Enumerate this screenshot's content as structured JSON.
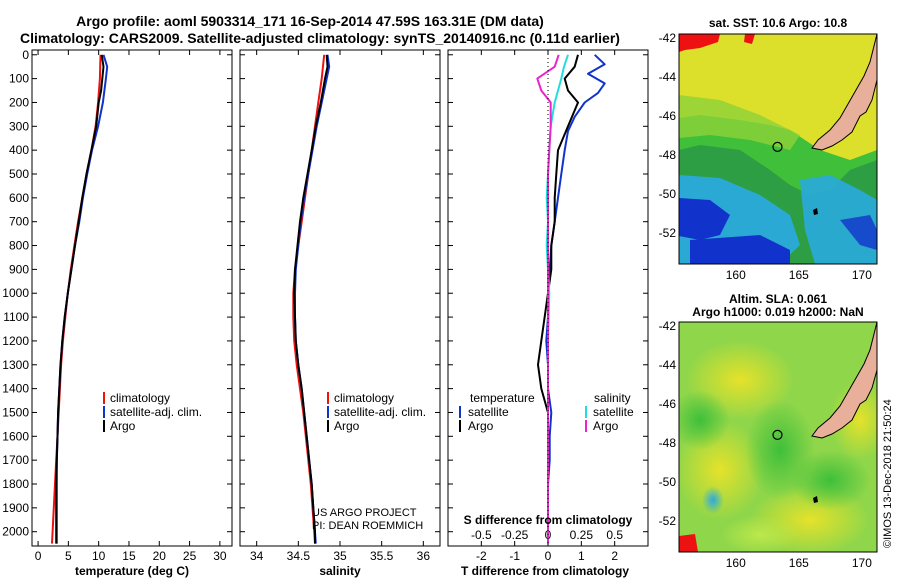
{
  "title": {
    "line1": "Argo profile: aoml 5903314_171 16-Sep-2014 47.59S 163.31E (DM data)",
    "line2": "Climatology: CARS2009. Satellite-adjusted climatology: synTS_20140916.nc (0.11d earlier)"
  },
  "colors": {
    "climatology": "#ee1111",
    "satellite": "#1133cc",
    "argo": "#000000",
    "s_satellite": "#22dddd",
    "s_argo": "#ee22cc",
    "land": "#e8b09a"
  },
  "credits": {
    "project": "US ARGO PROJECT",
    "pi": "PI: DEAN ROEMMICH",
    "imos": "©IMOS 13-Dec-2018 21:50:24"
  },
  "chart_data": [
    {
      "type": "line",
      "id": "temperature-profile",
      "xlabel": "temperature (deg C)",
      "xlim": [
        -1,
        32
      ],
      "ylim": [
        2060,
        -20
      ],
      "xticks": [
        0,
        5,
        10,
        15,
        20,
        25,
        30
      ],
      "yticks": [
        0,
        100,
        200,
        300,
        400,
        500,
        600,
        700,
        800,
        900,
        1000,
        1100,
        1200,
        1300,
        1400,
        1500,
        1600,
        1700,
        1800,
        1900,
        2000
      ],
      "legend": [
        "climatology",
        "satellite-adj. clim.",
        "Argo"
      ],
      "series": [
        {
          "name": "climatology",
          "color_key": "climatology",
          "points": [
            [
              10.3,
              0
            ],
            [
              10.2,
              100
            ],
            [
              9.9,
              200
            ],
            [
              9.5,
              300
            ],
            [
              8.8,
              400
            ],
            [
              8.0,
              500
            ],
            [
              7.3,
              600
            ],
            [
              6.6,
              700
            ],
            [
              6.0,
              800
            ],
            [
              5.4,
              900
            ],
            [
              4.9,
              1000
            ],
            [
              4.5,
              1100
            ],
            [
              4.1,
              1200
            ],
            [
              3.8,
              1300
            ],
            [
              3.6,
              1400
            ],
            [
              3.4,
              1500
            ],
            [
              3.2,
              1600
            ],
            [
              3.0,
              1700
            ],
            [
              2.8,
              1800
            ],
            [
              2.6,
              1900
            ],
            [
              2.4,
              2000
            ],
            [
              2.3,
              2050
            ]
          ]
        },
        {
          "name": "satellite-adj. clim.",
          "color_key": "satellite",
          "points": [
            [
              10.8,
              0
            ],
            [
              11.4,
              50
            ],
            [
              11.2,
              100
            ],
            [
              10.7,
              200
            ],
            [
              9.9,
              300
            ],
            [
              8.9,
              400
            ],
            [
              8.1,
              500
            ],
            [
              7.4,
              600
            ],
            [
              6.8,
              700
            ],
            [
              6.1,
              800
            ],
            [
              5.5,
              900
            ],
            [
              4.9,
              1000
            ],
            [
              4.4,
              1100
            ],
            [
              4.0,
              1200
            ],
            [
              3.7,
              1300
            ],
            [
              3.5,
              1400
            ],
            [
              3.3,
              1500
            ],
            [
              3.2,
              1600
            ],
            [
              3.1,
              1700
            ],
            [
              3.1,
              1800
            ],
            [
              3.1,
              1900
            ],
            [
              3.1,
              2000
            ],
            [
              3.1,
              2050
            ]
          ]
        },
        {
          "name": "Argo",
          "color_key": "argo",
          "points": [
            [
              10.5,
              0
            ],
            [
              10.8,
              50
            ],
            [
              10.6,
              100
            ],
            [
              10.4,
              150
            ],
            [
              10.0,
              200
            ],
            [
              9.6,
              300
            ],
            [
              8.8,
              400
            ],
            [
              8.0,
              500
            ],
            [
              7.3,
              600
            ],
            [
              6.7,
              700
            ],
            [
              6.1,
              800
            ],
            [
              5.5,
              900
            ],
            [
              4.9,
              1000
            ],
            [
              4.4,
              1100
            ],
            [
              4.0,
              1200
            ],
            [
              3.7,
              1300
            ],
            [
              3.5,
              1400
            ],
            [
              3.3,
              1500
            ],
            [
              3.2,
              1600
            ],
            [
              3.1,
              1700
            ],
            [
              3.0,
              1800
            ],
            [
              3.0,
              1900
            ],
            [
              3.0,
              2000
            ],
            [
              3.0,
              2050
            ]
          ]
        }
      ]
    },
    {
      "type": "line",
      "id": "salinity-profile",
      "xlabel": "salinity",
      "xlim": [
        33.8,
        36.2
      ],
      "ylim": [
        2060,
        -20
      ],
      "xticks": [
        34,
        34.5,
        35,
        35.5,
        36
      ],
      "xticklabels": [
        "34",
        "34.5",
        "35",
        "35.5",
        "36"
      ],
      "legend": [
        "climatology",
        "satellite-adj. clim.",
        "Argo"
      ],
      "series": [
        {
          "name": "climatology",
          "color_key": "climatology",
          "points": [
            [
              34.81,
              0
            ],
            [
              34.78,
              100
            ],
            [
              34.74,
              200
            ],
            [
              34.7,
              300
            ],
            [
              34.66,
              400
            ],
            [
              34.62,
              500
            ],
            [
              34.58,
              600
            ],
            [
              34.54,
              700
            ],
            [
              34.5,
              800
            ],
            [
              34.46,
              900
            ],
            [
              34.44,
              1000
            ],
            [
              34.44,
              1100
            ],
            [
              34.45,
              1200
            ],
            [
              34.48,
              1300
            ],
            [
              34.52,
              1400
            ],
            [
              34.56,
              1500
            ],
            [
              34.59,
              1600
            ],
            [
              34.62,
              1700
            ],
            [
              34.65,
              1800
            ],
            [
              34.67,
              1900
            ],
            [
              34.69,
              2000
            ],
            [
              34.7,
              2050
            ]
          ]
        },
        {
          "name": "satellite-adj. clim.",
          "color_key": "satellite",
          "points": [
            [
              34.85,
              0
            ],
            [
              34.87,
              50
            ],
            [
              34.84,
              100
            ],
            [
              34.78,
              200
            ],
            [
              34.72,
              300
            ],
            [
              34.67,
              400
            ],
            [
              34.62,
              500
            ],
            [
              34.57,
              600
            ],
            [
              34.53,
              700
            ],
            [
              34.5,
              800
            ],
            [
              34.47,
              900
            ],
            [
              34.46,
              1000
            ],
            [
              34.46,
              1100
            ],
            [
              34.47,
              1200
            ],
            [
              34.5,
              1300
            ],
            [
              34.54,
              1400
            ],
            [
              34.57,
              1500
            ],
            [
              34.6,
              1600
            ],
            [
              34.63,
              1700
            ],
            [
              34.66,
              1800
            ],
            [
              34.68,
              1900
            ],
            [
              34.7,
              2000
            ],
            [
              34.71,
              2050
            ]
          ]
        },
        {
          "name": "Argo",
          "color_key": "argo",
          "points": [
            [
              34.84,
              0
            ],
            [
              34.85,
              50
            ],
            [
              34.82,
              100
            ],
            [
              34.77,
              200
            ],
            [
              34.71,
              300
            ],
            [
              34.66,
              400
            ],
            [
              34.61,
              500
            ],
            [
              34.56,
              600
            ],
            [
              34.52,
              700
            ],
            [
              34.49,
              800
            ],
            [
              34.46,
              900
            ],
            [
              34.45,
              1000
            ],
            [
              34.46,
              1100
            ],
            [
              34.47,
              1200
            ],
            [
              34.5,
              1300
            ],
            [
              34.54,
              1400
            ],
            [
              34.57,
              1500
            ],
            [
              34.6,
              1600
            ],
            [
              34.63,
              1700
            ],
            [
              34.66,
              1800
            ],
            [
              34.68,
              1900
            ],
            [
              34.7,
              2000
            ],
            [
              34.7,
              2050
            ]
          ]
        }
      ]
    },
    {
      "type": "line",
      "id": "difference-profile",
      "xlabel": "T difference from climatology",
      "top_label": "S difference from climatology",
      "xlim": [
        -3,
        3
      ],
      "ylim": [
        2060,
        -20
      ],
      "xticks": [
        -2,
        -1,
        0,
        1,
        2
      ],
      "top_ticks": [
        -0.5,
        -0.25,
        0,
        0.25,
        0.5
      ],
      "top_ticklabels": [
        "-0.5",
        "-0.25",
        "0",
        "0.25",
        "0.5"
      ],
      "legend_temperature": {
        "heading": "temperature",
        "items": [
          "satellite",
          "Argo"
        ]
      },
      "legend_salinity": {
        "heading": "salinity",
        "items": [
          "satellite",
          "Argo"
        ]
      },
      "series": [
        {
          "name": "satellite",
          "group": "temperature",
          "color_key": "satellite",
          "points": [
            [
              1.4,
              0
            ],
            [
              1.7,
              40
            ],
            [
              1.2,
              80
            ],
            [
              1.7,
              120
            ],
            [
              1.5,
              160
            ],
            [
              1.1,
              200
            ],
            [
              0.8,
              260
            ],
            [
              0.6,
              320
            ],
            [
              0.5,
              400
            ],
            [
              0.4,
              500
            ],
            [
              0.3,
              600
            ],
            [
              0.2,
              700
            ],
            [
              0.1,
              800
            ],
            [
              0.05,
              900
            ],
            [
              0.0,
              1000
            ],
            [
              0.0,
              1100
            ],
            [
              -0.05,
              1200
            ],
            [
              0.0,
              1300
            ],
            [
              0.0,
              1400
            ],
            [
              0.1,
              1500
            ],
            [
              0.05,
              1600
            ],
            [
              0.05,
              1700
            ],
            [
              0.0,
              1800
            ],
            [
              0.0,
              1900
            ],
            [
              0.0,
              2000
            ],
            [
              0.0,
              2050
            ]
          ]
        },
        {
          "name": "Argo",
          "group": "temperature",
          "color_key": "argo",
          "points": [
            [
              0.9,
              0
            ],
            [
              0.8,
              50
            ],
            [
              0.5,
              100
            ],
            [
              0.6,
              150
            ],
            [
              0.9,
              200
            ],
            [
              0.6,
              300
            ],
            [
              0.3,
              400
            ],
            [
              0.25,
              500
            ],
            [
              0.2,
              600
            ],
            [
              0.2,
              700
            ],
            [
              0.1,
              800
            ],
            [
              0.1,
              900
            ],
            [
              0.0,
              1000
            ],
            [
              -0.2,
              1200
            ],
            [
              -0.3,
              1300
            ],
            [
              -0.2,
              1400
            ],
            [
              0.0,
              1500
            ],
            [
              0.0,
              1600
            ],
            [
              0.0,
              1800
            ],
            [
              0.0,
              2000
            ],
            [
              0.0,
              2050
            ]
          ]
        },
        {
          "name": "satellite",
          "group": "salinity",
          "color_key": "s_satellite",
          "points": [
            [
              0.15,
              0
            ],
            [
              0.12,
              50
            ],
            [
              0.1,
              100
            ],
            [
              0.05,
              200
            ],
            [
              0.02,
              300
            ],
            [
              0.01,
              400
            ],
            [
              0.0,
              500
            ],
            [
              -0.01,
              600
            ],
            [
              0.0,
              700
            ],
            [
              -0.01,
              800
            ],
            [
              0.0,
              900
            ],
            [
              0.01,
              1000
            ],
            [
              0.0,
              1200
            ],
            [
              0.0,
              1400
            ],
            [
              0.0,
              1600
            ],
            [
              0.0,
              1800
            ],
            [
              0.0,
              2000
            ],
            [
              0.0,
              2050
            ]
          ]
        },
        {
          "name": "Argo",
          "group": "salinity",
          "color_key": "s_argo",
          "points": [
            [
              0.08,
              0
            ],
            [
              0.05,
              50
            ],
            [
              -0.08,
              100
            ],
            [
              -0.05,
              150
            ],
            [
              0.02,
              200
            ],
            [
              0.02,
              300
            ],
            [
              0.01,
              400
            ],
            [
              0.0,
              500
            ],
            [
              0.0,
              600
            ],
            [
              0.0,
              800
            ],
            [
              0.0,
              1000
            ],
            [
              0.0,
              1200
            ],
            [
              0.0,
              1400
            ],
            [
              0.0,
              1600
            ],
            [
              0.0,
              1800
            ],
            [
              0.0,
              2000
            ],
            [
              0.0,
              2050
            ]
          ]
        }
      ]
    },
    {
      "type": "heatmap",
      "id": "sst-map",
      "title": "sat. SST: 10.6 Argo: 10.8",
      "xlim": [
        155.5,
        171.2
      ],
      "ylim": [
        -53.6,
        -41.8
      ],
      "xticks": [
        160,
        165,
        170
      ],
      "yticks": [
        -42,
        -44,
        -46,
        -48,
        -50,
        -52
      ],
      "marker": {
        "lon": 163.31,
        "lat": -47.59
      }
    },
    {
      "type": "heatmap",
      "id": "sla-map",
      "title": "Altim. SLA: 0.061",
      "subtitle": "Argo h1000: 0.019 h2000: NaN",
      "xlim": [
        155.5,
        171.2
      ],
      "ylim": [
        -53.6,
        -41.8
      ],
      "xticks": [
        160,
        165,
        170
      ],
      "yticks": [
        -42,
        -44,
        -46,
        -48,
        -50,
        -52
      ],
      "marker": {
        "lon": 163.31,
        "lat": -47.59
      }
    }
  ]
}
